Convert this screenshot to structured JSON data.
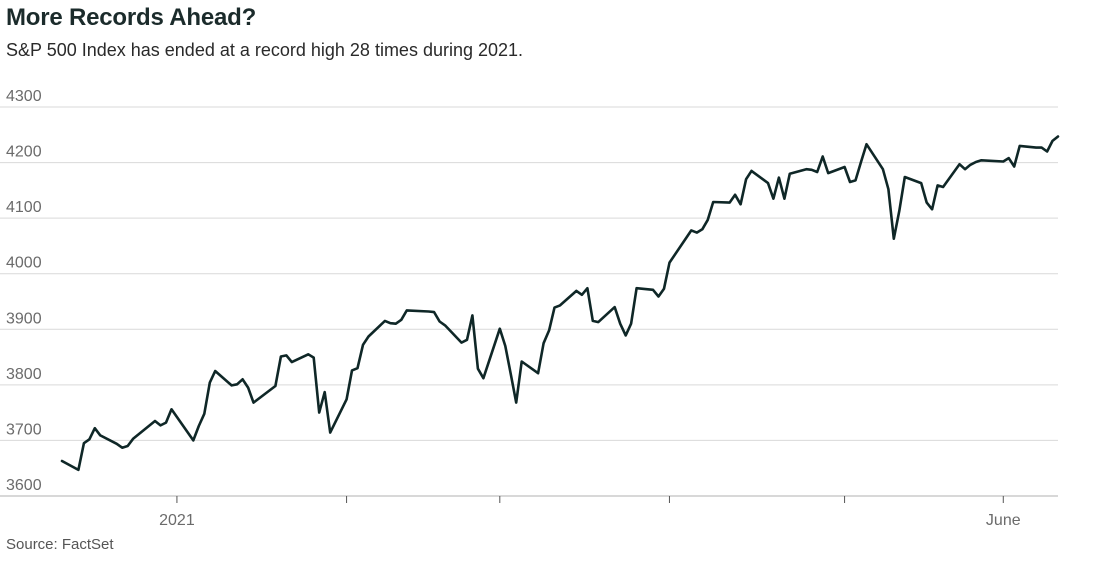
{
  "header": {
    "title": "More Records Ahead?",
    "subtitle": "S&P 500 Index has ended at a record high 28 times during 2021."
  },
  "footer": {
    "source": "Source: FactSet"
  },
  "colors": {
    "line": "#0f2727",
    "grid": "#d9d9d9",
    "axis": "#b0b0b0",
    "tick_text": "#6b6b6b"
  },
  "chart_data": {
    "type": "line",
    "title": "More Records Ahead?",
    "subtitle": "S&P 500 Index has ended at a record high 28 times during 2021.",
    "xlabel": "",
    "ylabel": "",
    "ylim": [
      3600,
      4300
    ],
    "yticks": [
      3600,
      3700,
      3800,
      3900,
      4000,
      4100,
      4200,
      4300
    ],
    "grid": true,
    "legend": "none",
    "x_tick_labels": [
      {
        "x": "2021-01-01",
        "label": "2021"
      },
      {
        "x": "2021-02-01",
        "label": ""
      },
      {
        "x": "2021-03-01",
        "label": ""
      },
      {
        "x": "2021-04-01",
        "label": ""
      },
      {
        "x": "2021-05-03",
        "label": ""
      },
      {
        "x": "2021-06-01",
        "label": "June"
      }
    ],
    "series": [
      {
        "x": [
          "2020-12-11",
          "2020-12-14",
          "2020-12-15",
          "2020-12-16",
          "2020-12-17",
          "2020-12-18",
          "2020-12-21",
          "2020-12-22",
          "2020-12-23",
          "2020-12-24",
          "2020-12-28",
          "2020-12-29",
          "2020-12-30",
          "2020-12-31",
          "2021-01-04",
          "2021-01-05",
          "2021-01-06",
          "2021-01-07",
          "2021-01-08",
          "2021-01-11",
          "2021-01-12",
          "2021-01-13",
          "2021-01-14",
          "2021-01-15",
          "2021-01-19",
          "2021-01-20",
          "2021-01-21",
          "2021-01-22",
          "2021-01-25",
          "2021-01-26",
          "2021-01-27",
          "2021-01-28",
          "2021-01-29",
          "2021-02-01",
          "2021-02-02",
          "2021-02-03",
          "2021-02-04",
          "2021-02-05",
          "2021-02-08",
          "2021-02-09",
          "2021-02-10",
          "2021-02-11",
          "2021-02-12",
          "2021-02-16",
          "2021-02-17",
          "2021-02-18",
          "2021-02-19",
          "2021-02-22",
          "2021-02-23",
          "2021-02-24",
          "2021-02-25",
          "2021-02-26",
          "2021-03-01",
          "2021-03-02",
          "2021-03-03",
          "2021-03-04",
          "2021-03-05",
          "2021-03-08",
          "2021-03-09",
          "2021-03-10",
          "2021-03-11",
          "2021-03-12",
          "2021-03-15",
          "2021-03-16",
          "2021-03-17",
          "2021-03-18",
          "2021-03-19",
          "2021-03-22",
          "2021-03-23",
          "2021-03-24",
          "2021-03-25",
          "2021-03-26",
          "2021-03-29",
          "2021-03-30",
          "2021-03-31",
          "2021-04-01",
          "2021-04-05",
          "2021-04-06",
          "2021-04-07",
          "2021-04-08",
          "2021-04-09",
          "2021-04-12",
          "2021-04-13",
          "2021-04-14",
          "2021-04-15",
          "2021-04-16",
          "2021-04-19",
          "2021-04-20",
          "2021-04-21",
          "2021-04-22",
          "2021-04-23",
          "2021-04-26",
          "2021-04-27",
          "2021-04-28",
          "2021-04-29",
          "2021-04-30",
          "2021-05-03",
          "2021-05-04",
          "2021-05-05",
          "2021-05-06",
          "2021-05-07",
          "2021-05-10",
          "2021-05-11",
          "2021-05-12",
          "2021-05-13",
          "2021-05-14",
          "2021-05-17",
          "2021-05-18",
          "2021-05-19",
          "2021-05-20",
          "2021-05-21",
          "2021-05-24",
          "2021-05-25",
          "2021-05-26",
          "2021-05-27",
          "2021-05-28",
          "2021-06-01",
          "2021-06-02",
          "2021-06-03",
          "2021-06-04",
          "2021-06-07",
          "2021-06-08",
          "2021-06-09",
          "2021-06-10",
          "2021-06-11"
        ],
        "values": [
          3663,
          3647,
          3695,
          3702,
          3722,
          3709,
          3694,
          3687,
          3690,
          3703,
          3735,
          3727,
          3732,
          3756,
          3700,
          3726,
          3748,
          3804,
          3825,
          3799,
          3801,
          3810,
          3795,
          3768,
          3798,
          3851,
          3853,
          3841,
          3855,
          3849,
          3750,
          3787,
          3714,
          3774,
          3826,
          3830,
          3872,
          3887,
          3915,
          3911,
          3910,
          3917,
          3934,
          3932,
          3931,
          3914,
          3907,
          3876,
          3881,
          3925,
          3829,
          3812,
          3901,
          3870,
          3820,
          3768,
          3842,
          3821,
          3875,
          3898,
          3939,
          3943,
          3969,
          3962,
          3974,
          3915,
          3913,
          3940,
          3910,
          3889,
          3910,
          3974,
          3971,
          3959,
          3973,
          4020,
          4078,
          4074,
          4080,
          4097,
          4129,
          4128,
          4142,
          4125,
          4170,
          4185,
          4163,
          4135,
          4173,
          4135,
          4180,
          4188,
          4187,
          4183,
          4211,
          4181,
          4192,
          4165,
          4168,
          4201,
          4233,
          4188,
          4152,
          4063,
          4113,
          4174,
          4163,
          4128,
          4116,
          4159,
          4156,
          4197,
          4188,
          4196,
          4201,
          4204,
          4202,
          4208,
          4193,
          4230,
          4227,
          4227,
          4220,
          4239,
          4247
        ]
      }
    ]
  }
}
